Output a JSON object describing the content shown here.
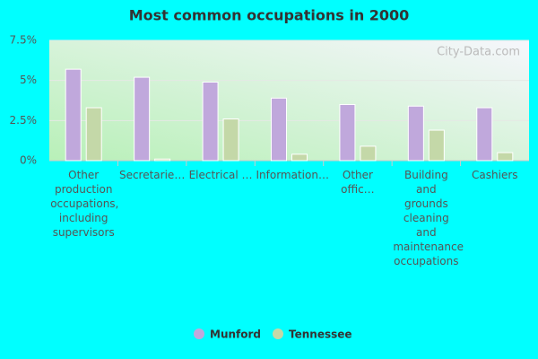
{
  "chart_data": {
    "type": "bar",
    "title": "Most common occupations in 2000",
    "watermark": "City-Data.com",
    "categories": [
      "Other production occupations, including supervisors",
      "Secretarie…",
      "Electrical …",
      "Information…",
      "Other offic…",
      "Building and grounds cleaning and maintenance occupations",
      "Cashiers"
    ],
    "series": [
      {
        "name": "Munford",
        "color": "#c0a8dc",
        "values": [
          5.7,
          5.2,
          4.9,
          3.9,
          3.5,
          3.4,
          3.3
        ]
      },
      {
        "name": "Tennessee",
        "color": "#c4d8a8",
        "values": [
          3.3,
          0.1,
          2.6,
          0.4,
          0.9,
          1.9,
          0.5
        ]
      }
    ],
    "ylim": [
      0,
      7.5
    ],
    "yticks": [
      {
        "value": 0,
        "label": "0%"
      },
      {
        "value": 2.5,
        "label": "2.5%"
      },
      {
        "value": 5,
        "label": "5%"
      },
      {
        "value": 7.5,
        "label": "7.5%"
      }
    ],
    "grid": true,
    "legend": "bottom"
  }
}
